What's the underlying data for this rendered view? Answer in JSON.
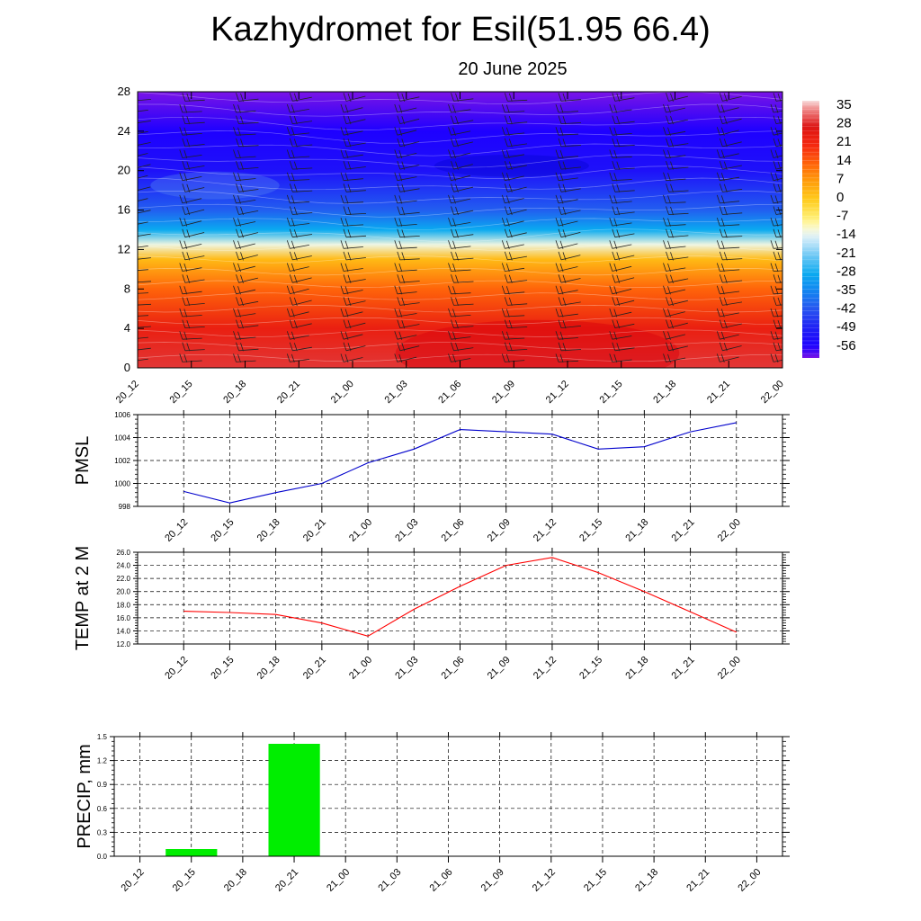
{
  "title": "Kazhydromet for Esil(51.95 66.4)",
  "subtitle": "20 June 2025",
  "time_labels": [
    "20_12",
    "20_15",
    "20_18",
    "20_21",
    "21_00",
    "21_03",
    "21_06",
    "21_09",
    "21_12",
    "21_15",
    "21_18",
    "21_21",
    "22_00"
  ],
  "chart_data": [
    {
      "type": "heatmap",
      "ylabel": "",
      "ylim": [
        0,
        28
      ],
      "yticks": [
        "0",
        "4",
        "8",
        "12",
        "16",
        "20",
        "24",
        "28"
      ],
      "x": [
        "20_12",
        "20_15",
        "20_18",
        "20_21",
        "21_00",
        "21_03",
        "21_06",
        "21_09",
        "21_12",
        "21_15",
        "21_18",
        "21_21",
        "22_00"
      ],
      "colorbar": {
        "labels": [
          "35",
          "28",
          "21",
          "14",
          "7",
          "0",
          "-7",
          "-14",
          "-21",
          "-28",
          "-35",
          "-42",
          "-49",
          "-56"
        ],
        "range": [
          -60,
          38
        ]
      },
      "temperature_profile": {
        "levels": [
          0,
          4,
          8,
          11,
          12.5,
          14,
          16,
          20,
          24,
          28
        ],
        "values": [
          30,
          24,
          14,
          3,
          -12,
          -28,
          -40,
          -52,
          -56,
          -60
        ]
      },
      "overlay": "wind barbs"
    },
    {
      "type": "line",
      "ylabel": "PMSL",
      "ylim": [
        998,
        1006
      ],
      "yticks": [
        "998",
        "1000",
        "1002",
        "1004",
        "1006"
      ],
      "x": [
        "20_12",
        "20_15",
        "20_18",
        "20_21",
        "21_00",
        "21_03",
        "21_06",
        "21_09",
        "21_12",
        "21_15",
        "21_18",
        "21_21",
        "22_00"
      ],
      "values": [
        999.3,
        998.3,
        999.2,
        1000.0,
        1001.8,
        1003.0,
        1004.7,
        1004.5,
        1004.3,
        1003.0,
        1003.2,
        1004.5,
        1005.3
      ],
      "color": "#0000cc",
      "grid": true
    },
    {
      "type": "line",
      "ylabel": "TEMP at 2 M",
      "ylim": [
        12.0,
        26.0
      ],
      "yticks": [
        "12.0",
        "14.0",
        "16.0",
        "18.0",
        "20.0",
        "22.0",
        "24.0",
        "26.0"
      ],
      "x": [
        "20_12",
        "20_15",
        "20_18",
        "20_21",
        "21_00",
        "21_03",
        "21_06",
        "21_09",
        "21_12",
        "21_15",
        "21_18",
        "21_21",
        "22_00"
      ],
      "values": [
        17.0,
        16.8,
        16.5,
        15.2,
        13.2,
        17.3,
        20.8,
        24.0,
        25.2,
        22.9,
        20.0,
        16.9,
        13.8
      ],
      "color": "#ff0000",
      "grid": true
    },
    {
      "type": "bar",
      "ylabel": "PRECIP, mm",
      "ylim": [
        0.0,
        1.5
      ],
      "yticks": [
        "0.0",
        "0.3",
        "0.6",
        "0.9",
        "1.2",
        "1.5"
      ],
      "categories": [
        "20_12",
        "20_15",
        "20_18",
        "20_21",
        "21_00",
        "21_03",
        "21_06",
        "21_09",
        "21_12",
        "21_15",
        "21_18",
        "21_21",
        "22_00"
      ],
      "values": [
        0,
        0.09,
        0,
        1.41,
        0,
        0,
        0,
        0,
        0,
        0,
        0,
        0,
        0
      ],
      "color": "#00ee00",
      "grid": true
    }
  ]
}
